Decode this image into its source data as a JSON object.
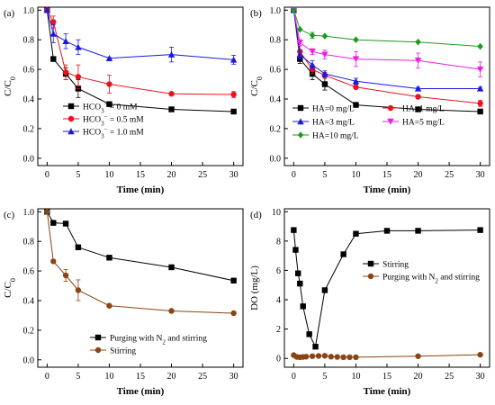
{
  "chart_data": [
    {
      "type": "line",
      "panel_label": "(a)",
      "xlabel": "Time (min)",
      "ylabel": "C/C",
      "ylabel_sub": "0",
      "xlim": [
        -1.5,
        31.5
      ],
      "ylim": [
        -0.05,
        1.02
      ],
      "xticks": [
        0,
        5,
        10,
        15,
        20,
        25,
        30
      ],
      "yticks": [
        0.0,
        0.2,
        0.4,
        0.6,
        0.8,
        1.0
      ],
      "ytick_labels": [
        "0.0",
        "0.2",
        "0.4",
        "0.6",
        "0.8",
        "1.0"
      ],
      "legend_position": "bottom-center",
      "series": [
        {
          "name": "HCO₃⁻ =  0  mM",
          "color": "#000000",
          "marker": "square",
          "x": [
            0,
            1,
            3,
            5,
            10,
            20,
            30
          ],
          "y": [
            1.0,
            0.67,
            0.57,
            0.47,
            0.365,
            0.33,
            0.315
          ],
          "err": [
            0,
            0,
            0.04,
            0.06,
            0.01,
            0.005,
            0.005
          ]
        },
        {
          "name": "HCO₃⁻ = 0.5 mM",
          "color": "#e8131b",
          "marker": "circle",
          "x": [
            0,
            1,
            3,
            5,
            10,
            20,
            30
          ],
          "y": [
            1.0,
            0.92,
            0.58,
            0.55,
            0.5,
            0.435,
            0.43
          ],
          "err": [
            0,
            0.04,
            0.05,
            0.08,
            0.06,
            0.01,
            0.02
          ]
        },
        {
          "name": "HCO₃⁻ = 1.0 mM",
          "color": "#1a1adf",
          "marker": "triangle",
          "x": [
            0,
            1,
            3,
            5,
            10,
            20,
            30
          ],
          "y": [
            1.0,
            0.84,
            0.79,
            0.75,
            0.675,
            0.7,
            0.665
          ],
          "err": [
            0,
            0.06,
            0.05,
            0.05,
            0.005,
            0.05,
            0.03
          ]
        }
      ]
    },
    {
      "type": "line",
      "panel_label": "(b)",
      "xlabel": "Time (min)",
      "ylabel": "C/C",
      "ylabel_sub": "0",
      "xlim": [
        -1.5,
        31.5
      ],
      "ylim": [
        -0.05,
        1.02
      ],
      "xticks": [
        0,
        5,
        10,
        15,
        20,
        25,
        30
      ],
      "yticks": [
        0.0,
        0.2,
        0.4,
        0.6,
        0.8,
        1.0
      ],
      "ytick_labels": [
        "0.0",
        "0.2",
        "0.4",
        "0.6",
        "0.8",
        "1.0"
      ],
      "legend_position": "bottom-center",
      "series": [
        {
          "name": "HA=0 mg/L",
          "color": "#000000",
          "marker": "square",
          "x": [
            0,
            1,
            3,
            5,
            10,
            20,
            30
          ],
          "y": [
            1.0,
            0.67,
            0.57,
            0.5,
            0.36,
            0.33,
            0.315
          ],
          "err": [
            0,
            0.03,
            0.04,
            0.04,
            0.01,
            0.005,
            0.005
          ]
        },
        {
          "name": "HA=1 mg/L",
          "color": "#e8131b",
          "marker": "circle",
          "x": [
            0,
            1,
            3,
            5,
            10,
            20,
            30
          ],
          "y": [
            1.0,
            0.72,
            0.6,
            0.56,
            0.48,
            0.415,
            0.37
          ],
          "err": [
            0,
            0.04,
            0.03,
            0.02,
            0.01,
            0.01,
            0.02
          ]
        },
        {
          "name": "HA=3 mg/L",
          "color": "#1a1adf",
          "marker": "triangle",
          "x": [
            0,
            1,
            3,
            5,
            10,
            20,
            30
          ],
          "y": [
            1.0,
            0.7,
            0.63,
            0.57,
            0.52,
            0.47,
            0.47
          ],
          "err": [
            0,
            0.03,
            0.03,
            0.02,
            0.02,
            0.01,
            0.01
          ]
        },
        {
          "name": "HA=5 mg/L",
          "color": "#ee1fe6",
          "marker": "triangle-down",
          "x": [
            0,
            1,
            3,
            5,
            10,
            20,
            30
          ],
          "y": [
            1.0,
            0.78,
            0.72,
            0.7,
            0.67,
            0.66,
            0.6
          ],
          "err": [
            0,
            0.02,
            0.02,
            0.03,
            0.05,
            0.05,
            0.05
          ]
        },
        {
          "name": "HA=10 mg/L",
          "color": "#1f9a1f",
          "marker": "diamond",
          "x": [
            0,
            1,
            3,
            5,
            10,
            20,
            30
          ],
          "y": [
            1.0,
            0.87,
            0.83,
            0.825,
            0.8,
            0.785,
            0.755
          ],
          "err": [
            0,
            0,
            0.02,
            0.005,
            0.005,
            0.005,
            0.005
          ]
        }
      ]
    },
    {
      "type": "line",
      "panel_label": "(c)",
      "xlabel": "Time (min)",
      "ylabel": "C/C",
      "ylabel_sub": "0",
      "xlim": [
        -1.5,
        31.5
      ],
      "ylim": [
        -0.05,
        1.02
      ],
      "xticks": [
        0,
        5,
        10,
        15,
        20,
        25,
        30
      ],
      "yticks": [
        0.0,
        0.2,
        0.4,
        0.6,
        0.8,
        1.0
      ],
      "ytick_labels": [
        "0.0",
        "0.2",
        "0.4",
        "0.6",
        "0.8",
        "1.0"
      ],
      "legend_position": "bottom-center",
      "series": [
        {
          "name": "Purging with N₂ and stirring",
          "color": "#000000",
          "marker": "square",
          "x": [
            0,
            1,
            3,
            5,
            10,
            20,
            30
          ],
          "y": [
            1.0,
            0.925,
            0.92,
            0.76,
            0.69,
            0.625,
            0.535
          ],
          "err": [
            0,
            0,
            0,
            0,
            0,
            0,
            0
          ]
        },
        {
          "name": "Stirring",
          "color": "#8b4513",
          "marker": "circle",
          "x": [
            0,
            1,
            3,
            5,
            10,
            20,
            30
          ],
          "y": [
            1.0,
            0.665,
            0.57,
            0.47,
            0.365,
            0.33,
            0.315
          ],
          "err": [
            0,
            0,
            0.04,
            0.07,
            0.01,
            0.005,
            0.005
          ]
        }
      ]
    },
    {
      "type": "line",
      "panel_label": "(d)",
      "xlabel": "Time (min)",
      "ylabel": "DO (mg/L)",
      "ylabel_sub": "",
      "xlim": [
        -1.5,
        31.5
      ],
      "ylim": [
        -0.6,
        10.2
      ],
      "xticks": [
        0,
        5,
        10,
        15,
        20,
        25,
        30
      ],
      "yticks": [
        0,
        2,
        4,
        6,
        8,
        10
      ],
      "ytick_labels": [
        "0",
        "2",
        "4",
        "6",
        "8",
        "10"
      ],
      "legend_position": "center-right",
      "series": [
        {
          "name": "Stirring",
          "color": "#000000",
          "marker": "square",
          "x": [
            0,
            0.3,
            0.7,
            1,
            1.5,
            2.5,
            3.5,
            5,
            8,
            10,
            15,
            20,
            30
          ],
          "y": [
            8.75,
            7.4,
            5.8,
            5.1,
            3.55,
            1.65,
            0.8,
            4.65,
            7.1,
            8.5,
            8.7,
            8.7,
            8.75
          ],
          "err": [
            0,
            0,
            0,
            0,
            0,
            0,
            0,
            0,
            0,
            0,
            0,
            0,
            0
          ]
        },
        {
          "name": "Purging with N₂ and stirring",
          "color": "#8b4513",
          "marker": "circle",
          "x": [
            0,
            0.5,
            1,
            1.5,
            2,
            3,
            4,
            5,
            6,
            7,
            8,
            9,
            10,
            20,
            30
          ],
          "y": [
            0.22,
            0.1,
            0.08,
            0.1,
            0.12,
            0.15,
            0.17,
            0.18,
            0.12,
            0.1,
            0.08,
            0.08,
            0.08,
            0.15,
            0.25
          ],
          "err": [
            0,
            0,
            0,
            0,
            0,
            0,
            0,
            0,
            0,
            0,
            0,
            0,
            0,
            0,
            0
          ]
        }
      ]
    }
  ]
}
